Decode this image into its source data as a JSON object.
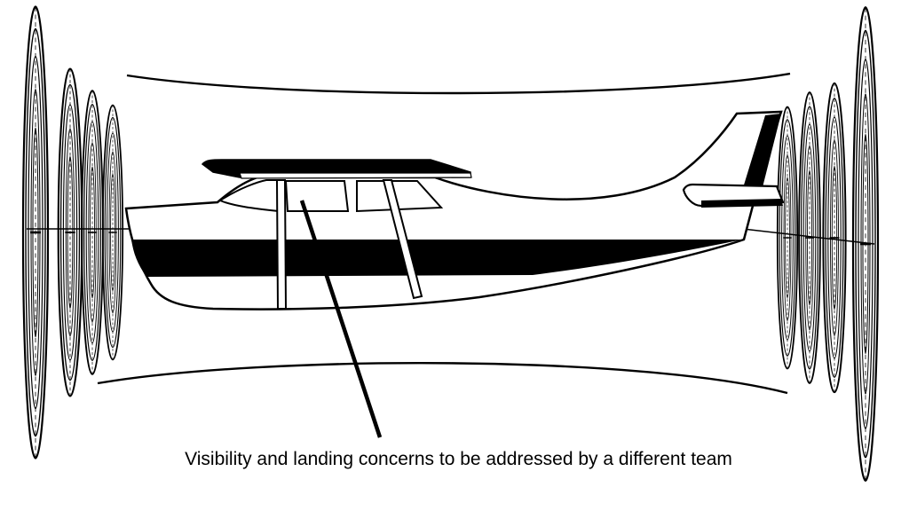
{
  "annotation": {
    "text": "Visibility and landing concerns to be addressed by a different team"
  },
  "diagram": {
    "subject": "airplane-in-duct-with-propellers",
    "colors": {
      "ink": "#000000",
      "paper": "#ffffff"
    }
  }
}
